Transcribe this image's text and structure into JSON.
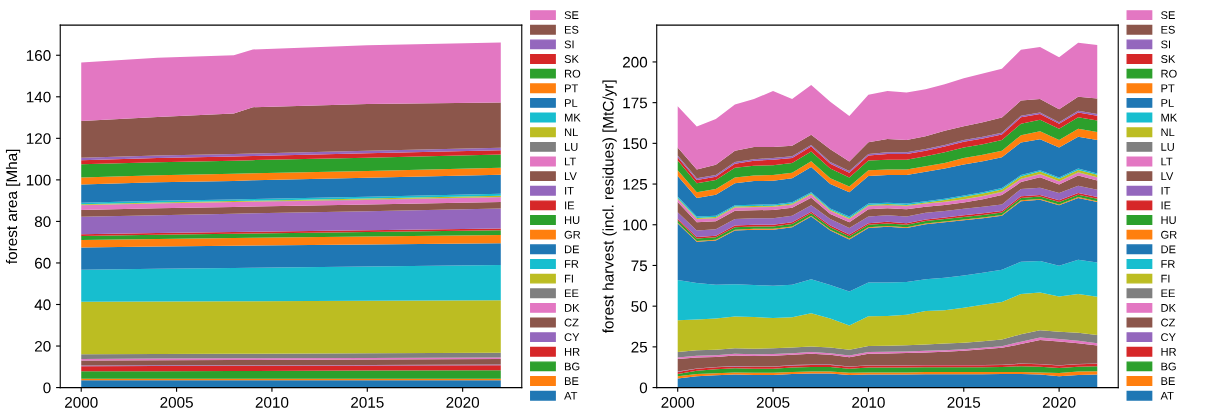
{
  "chart_data": [
    {
      "type": "area",
      "stacked": true,
      "ylabel": "forest area [Mha]",
      "legend": "right",
      "x": [
        2000,
        2004,
        2008,
        2009,
        2015,
        2022
      ],
      "xlim": [
        1998.9,
        2023.1
      ],
      "xticks": [
        2000,
        2005,
        2010,
        2015,
        2020
      ],
      "ylim": [
        0,
        174.5
      ],
      "yticks": [
        0,
        20,
        40,
        60,
        80,
        100,
        120,
        140,
        160
      ],
      "series": [
        {
          "name": "AT",
          "color": "#1f77b4",
          "values": [
            3.5,
            3.5,
            3.5,
            3.5,
            3.5,
            3.5
          ]
        },
        {
          "name": "BE",
          "color": "#ff7f0e",
          "values": [
            0.8,
            0.8,
            0.8,
            0.8,
            0.8,
            0.8
          ]
        },
        {
          "name": "BG",
          "color": "#2ca02c",
          "values": [
            3.5,
            3.6,
            3.7,
            3.7,
            3.9,
            4.1
          ]
        },
        {
          "name": "HR",
          "color": "#d62728",
          "values": [
            2.5,
            2.5,
            2.5,
            2.5,
            2.4,
            2.4
          ]
        },
        {
          "name": "CY",
          "color": "#9467bd",
          "values": [
            0.3,
            0.3,
            0.3,
            0.3,
            0.3,
            0.3
          ]
        },
        {
          "name": "CZ",
          "color": "#8c564b",
          "values": [
            2.4,
            2.5,
            2.5,
            2.5,
            2.6,
            2.7
          ]
        },
        {
          "name": "DK",
          "color": "#e377c2",
          "values": [
            0.8,
            0.8,
            0.8,
            0.8,
            0.7,
            0.7
          ]
        },
        {
          "name": "EE",
          "color": "#7f7f7f",
          "values": [
            2.2,
            2.2,
            2.2,
            2.2,
            2.3,
            2.3
          ]
        },
        {
          "name": "FI",
          "color": "#bcbd22",
          "values": [
            25.3,
            25.3,
            25.3,
            25.3,
            25.3,
            25.2
          ]
        },
        {
          "name": "FR",
          "color": "#17becf",
          "values": [
            15.4,
            15.7,
            16.0,
            16.1,
            16.5,
            17.0
          ]
        },
        {
          "name": "DE",
          "color": "#1f77b4",
          "values": [
            10.8,
            10.7,
            10.7,
            10.7,
            10.6,
            10.5
          ]
        },
        {
          "name": "GR",
          "color": "#ff7f0e",
          "values": [
            3.5,
            3.6,
            3.7,
            3.7,
            3.8,
            4.0
          ]
        },
        {
          "name": "HU",
          "color": "#2ca02c",
          "values": [
            2.0,
            2.1,
            2.1,
            2.1,
            2.2,
            2.3
          ]
        },
        {
          "name": "IE",
          "color": "#d62728",
          "values": [
            0.8,
            0.8,
            0.8,
            0.8,
            0.8,
            0.8
          ]
        },
        {
          "name": "IT",
          "color": "#9467bd",
          "values": [
            8.4,
            8.6,
            8.8,
            8.9,
            9.2,
            9.6
          ]
        },
        {
          "name": "LV",
          "color": "#8c564b",
          "values": [
            3.3,
            3.3,
            3.3,
            3.3,
            3.2,
            3.2
          ]
        },
        {
          "name": "LT",
          "color": "#e377c2",
          "values": [
            2.3,
            2.3,
            2.3,
            2.3,
            2.2,
            2.2
          ]
        },
        {
          "name": "LU",
          "color": "#7f7f7f",
          "values": [
            0.1,
            0.1,
            0.1,
            0.1,
            0.2,
            0.2
          ]
        },
        {
          "name": "NL",
          "color": "#bcbd22",
          "values": [
            0.4,
            0.4,
            0.4,
            0.4,
            0.5,
            0.5
          ]
        },
        {
          "name": "MK",
          "color": "#17becf",
          "values": [
            0.7,
            0.8,
            0.8,
            0.8,
            0.9,
            1.0
          ]
        },
        {
          "name": "PL",
          "color": "#1f77b4",
          "values": [
            8.8,
            8.9,
            8.9,
            9.0,
            9.1,
            9.2
          ]
        },
        {
          "name": "PT",
          "color": "#ff7f0e",
          "values": [
            3.4,
            3.4,
            3.4,
            3.4,
            3.3,
            3.3
          ]
        },
        {
          "name": "RO",
          "color": "#2ca02c",
          "values": [
            6.3,
            6.3,
            6.3,
            6.3,
            6.4,
            6.4
          ]
        },
        {
          "name": "SK",
          "color": "#d62728",
          "values": [
            2.0,
            2.0,
            2.0,
            2.0,
            2.1,
            2.1
          ]
        },
        {
          "name": "SI",
          "color": "#9467bd",
          "values": [
            1.2,
            1.2,
            1.2,
            1.2,
            1.2,
            1.2
          ]
        },
        {
          "name": "ES",
          "color": "#8c564b",
          "values": [
            17.6,
            18.6,
            19.6,
            22.3,
            22.5,
            21.7
          ]
        },
        {
          "name": "SE",
          "color": "#e377c2",
          "values": [
            28.2,
            28.5,
            28.0,
            27.8,
            28.3,
            28.9
          ]
        }
      ]
    },
    {
      "type": "area",
      "stacked": true,
      "ylabel": "forest harvest (incl. residues) [MtC/yr]",
      "legend": "right",
      "x": [
        2000,
        2001,
        2002,
        2003,
        2004,
        2005,
        2006,
        2007,
        2008,
        2009,
        2010,
        2011,
        2012,
        2013,
        2014,
        2015,
        2016,
        2017,
        2018,
        2019,
        2020,
        2021,
        2022
      ],
      "xlim": [
        1998.9,
        2023.1
      ],
      "xticks": [
        2000,
        2005,
        2010,
        2015,
        2020
      ],
      "ylim": [
        0,
        222.6
      ],
      "yticks": [
        0,
        25,
        50,
        75,
        100,
        125,
        150,
        175,
        200
      ],
      "series": [
        {
          "name": "AT",
          "color": "#1f77b4",
          "values": [
            5.6,
            7,
            7.5,
            8,
            7.8,
            7.8,
            8.3,
            8.6,
            8.6,
            7.8,
            8,
            8,
            8,
            8.2,
            8.2,
            8.2,
            8.2,
            8.3,
            8.3,
            8,
            7,
            7.8,
            8.1
          ]
        },
        {
          "name": "BE",
          "color": "#ff7f0e",
          "values": [
            1.3,
            1.3,
            1.3,
            1.3,
            1.3,
            1.3,
            1.3,
            1.3,
            1.3,
            1.3,
            1.3,
            1.3,
            1.3,
            1.3,
            1.3,
            1.3,
            1.3,
            1.3,
            1.3,
            1.3,
            2,
            2,
            2
          ]
        },
        {
          "name": "BG",
          "color": "#2ca02c",
          "values": [
            1.5,
            2,
            2.5,
            2.5,
            2.5,
            2.5,
            2.8,
            2.8,
            2.8,
            2.5,
            3,
            3,
            3,
            3,
            3,
            3,
            3,
            3,
            3.5,
            3.5,
            3,
            3,
            3
          ]
        },
        {
          "name": "HR",
          "color": "#d62728",
          "values": [
            1.2,
            1.2,
            1.2,
            1.2,
            1.2,
            1.2,
            1.2,
            1.2,
            1.2,
            1.2,
            1.2,
            1.2,
            1.2,
            1.2,
            1.2,
            1.2,
            1.2,
            1.2,
            1.5,
            1.5,
            1.5,
            1.5,
            1.5
          ]
        },
        {
          "name": "CY",
          "color": "#9467bd",
          "values": [
            0.2,
            0.2,
            0.2,
            0.2,
            0.2,
            0.2,
            0.2,
            0.2,
            0.2,
            0.2,
            0.2,
            0.2,
            0.2,
            0.2,
            0.2,
            0.2,
            0.2,
            0.2,
            0.2,
            0.2,
            0.2,
            0.2,
            0.2
          ]
        },
        {
          "name": "CZ",
          "color": "#8c564b",
          "values": [
            7.7,
            6.8,
            6.1,
            6.5,
            6.4,
            6.6,
            6.3,
            6.7,
            6.0,
            5.7,
            7.1,
            7.3,
            7.5,
            7.7,
            8.1,
            8.7,
            9.6,
            10.4,
            11.9,
            14.7,
            14.6,
            12.8,
            11.0
          ]
        },
        {
          "name": "DK",
          "color": "#e377c2",
          "values": [
            1,
            1,
            1,
            1,
            1,
            1,
            1,
            1,
            1,
            1,
            1,
            1,
            1,
            1,
            1,
            1,
            1,
            1,
            1.5,
            1.5,
            1.5,
            1.5,
            1.5
          ]
        },
        {
          "name": "EE",
          "color": "#7f7f7f",
          "values": [
            3.3,
            3.5,
            3.5,
            3.5,
            3.5,
            3.5,
            3.5,
            3.5,
            3.5,
            3.5,
            3.7,
            3.7,
            3.8,
            3.8,
            4,
            4,
            4,
            4.2,
            4.5,
            4.5,
            4.5,
            4.8,
            5
          ]
        },
        {
          "name": "FI",
          "color": "#bcbd22",
          "values": [
            19.5,
            18.8,
            19.2,
            19.4,
            19.4,
            18.7,
            18.6,
            20.4,
            17.9,
            15.0,
            18.3,
            18.3,
            18.8,
            20.6,
            20.5,
            21.4,
            22.3,
            22.9,
            24.8,
            23.2,
            21.7,
            23.9,
            23.5
          ]
        },
        {
          "name": "FR",
          "color": "#17becf",
          "values": [
            24.7,
            22.5,
            20.7,
            19.8,
            19.7,
            19.7,
            20.0,
            20.8,
            20.5,
            20.8,
            20.8,
            20.6,
            20.0,
            19.6,
            20.0,
            19.8,
            19.7,
            19.8,
            19.8,
            19.3,
            18.8,
            21.0,
            21.0
          ]
        },
        {
          "name": "DE",
          "color": "#1f77b4",
          "values": [
            34.7,
            25.2,
            27.1,
            33.1,
            34.0,
            34.5,
            35.3,
            38.5,
            33.5,
            32.0,
            33.4,
            34.2,
            33.2,
            33.7,
            34.0,
            34.0,
            33.5,
            33.2,
            37.2,
            37.6,
            37.2,
            38.0,
            37.2
          ]
        },
        {
          "name": "GR",
          "color": "#ff7f0e",
          "values": [
            0.5,
            0.5,
            0.5,
            0.5,
            0.5,
            0.5,
            0.5,
            0.5,
            0.5,
            0.5,
            0.5,
            0.5,
            0.5,
            0.5,
            0.5,
            0.5,
            0.5,
            0.5,
            0.5,
            0.5,
            0.5,
            0.5,
            0.5
          ]
        },
        {
          "name": "HU",
          "color": "#2ca02c",
          "values": [
            1.5,
            1.5,
            1.5,
            1.5,
            1.5,
            1.5,
            1.5,
            1.5,
            1.5,
            1.5,
            1.5,
            1.5,
            1.5,
            1.5,
            1.5,
            1.5,
            1.5,
            1.5,
            1.5,
            1.5,
            1.5,
            1.5,
            1.5
          ]
        },
        {
          "name": "IE",
          "color": "#d62728",
          "values": [
            1,
            1,
            1,
            1,
            1,
            1,
            1,
            1,
            1,
            1,
            1,
            1,
            1,
            1,
            1,
            1,
            1,
            1,
            1,
            1,
            1,
            1,
            1
          ]
        },
        {
          "name": "IT",
          "color": "#9467bd",
          "values": [
            4,
            4,
            4,
            4,
            4,
            4,
            4,
            4,
            4,
            4,
            4,
            4,
            4,
            4,
            4,
            4,
            4,
            4,
            4.5,
            4.5,
            4.5,
            4.5,
            4.5
          ]
        },
        {
          "name": "LV",
          "color": "#8c564b",
          "values": [
            6.2,
            5.1,
            4.8,
            5.1,
            4.9,
            5.1,
            4.9,
            4.6,
            3.1,
            3.6,
            4.6,
            4.3,
            4.6,
            3.8,
            3.7,
            3.9,
            4.7,
            5.7,
            4.2,
            6.4,
            5.2,
            6.2,
            5.7
          ]
        },
        {
          "name": "LT",
          "color": "#e377c2",
          "values": [
            1.8,
            1.8,
            1.8,
            1.8,
            1.8,
            1.8,
            1.8,
            1.8,
            1.8,
            1.8,
            1.8,
            1.8,
            1.8,
            1.8,
            1.8,
            1.8,
            1.8,
            1.8,
            1.8,
            1.8,
            1.8,
            1.8,
            1.8
          ]
        },
        {
          "name": "LU",
          "color": "#7f7f7f",
          "values": [
            0.2,
            0.2,
            0.2,
            0.2,
            0.2,
            0.2,
            0.2,
            0.2,
            0.2,
            0.2,
            0.2,
            0.2,
            0.2,
            0.2,
            0.2,
            0.2,
            0.2,
            0.2,
            0.2,
            0.2,
            0.2,
            0.2,
            0.2
          ]
        },
        {
          "name": "NL",
          "color": "#bcbd22",
          "values": [
            0.6,
            0.6,
            0.6,
            0.6,
            0.6,
            0.6,
            0.6,
            0.6,
            0.6,
            0.6,
            0.6,
            0.6,
            0.6,
            0.6,
            1.0,
            1.5,
            1.5,
            1.5,
            1.5,
            1.5,
            1.5,
            1.5,
            1.5
          ]
        },
        {
          "name": "MK",
          "color": "#17becf",
          "values": [
            0.8,
            0.8,
            0.8,
            0.8,
            0.8,
            0.8,
            0.8,
            0.8,
            0.8,
            0.8,
            0.8,
            0.8,
            0.8,
            0.8,
            0.8,
            0.8,
            0.8,
            0.8,
            0.8,
            0.8,
            0.8,
            0.8,
            0.8
          ]
        },
        {
          "name": "PL",
          "color": "#1f77b4",
          "values": [
            12.7,
            11.5,
            13.0,
            13.5,
            14.5,
            14.5,
            14.7,
            15.5,
            15.0,
            15.0,
            17.0,
            17.0,
            17.5,
            18.0,
            18.5,
            19.0,
            19.0,
            19.0,
            20.0,
            19.0,
            18.5,
            19.5,
            20.5
          ]
        },
        {
          "name": "PT",
          "color": "#ff7f0e",
          "values": [
            3.5,
            3.5,
            3.5,
            3.5,
            3.5,
            3.5,
            3.5,
            3.5,
            3.5,
            3.5,
            3.5,
            3.5,
            3.5,
            3.5,
            3.5,
            4,
            4,
            4,
            4.5,
            5,
            4.5,
            5,
            5
          ]
        },
        {
          "name": "RO",
          "color": "#2ca02c",
          "values": [
            6,
            5.5,
            5.5,
            6,
            6,
            6,
            6,
            6,
            6,
            5.5,
            6,
            6,
            6,
            6,
            6.5,
            6.5,
            6.5,
            6.5,
            7,
            7,
            7,
            7,
            7
          ]
        },
        {
          "name": "SK",
          "color": "#d62728",
          "values": [
            2,
            2,
            2,
            2.5,
            3,
            3.5,
            3,
            3,
            3,
            3,
            3,
            3.5,
            3.5,
            3.5,
            3.5,
            3.5,
            3.5,
            3.5,
            4,
            3.5,
            3,
            3,
            3
          ]
        },
        {
          "name": "SI",
          "color": "#9467bd",
          "values": [
            1,
            1,
            1,
            1,
            1,
            1,
            1,
            1,
            1,
            1,
            1,
            1,
            1,
            1,
            1,
            1,
            1,
            1,
            1,
            1,
            1,
            1,
            1
          ]
        },
        {
          "name": "ES",
          "color": "#8c564b",
          "values": [
            5.0,
            5.5,
            6.4,
            6.9,
            7.4,
            6.7,
            6.5,
            6.3,
            7.9,
            5.9,
            7.1,
            8.1,
            7.5,
            7.8,
            8.8,
            8.5,
            9.0,
            9.4,
            9.3,
            8.2,
            7.9,
            8.6,
            9.6
          ]
        },
        {
          "name": "SE",
          "color": "#e377c2",
          "values": [
            25.3,
            26.3,
            28.0,
            28.4,
            29.5,
            34.4,
            28.7,
            30.6,
            29.1,
            27.9,
            29.3,
            29.5,
            29.3,
            28.9,
            28.5,
            29.5,
            29.9,
            29.9,
            31.2,
            31.9,
            32.0,
            33.2,
            32.8
          ]
        }
      ]
    }
  ]
}
